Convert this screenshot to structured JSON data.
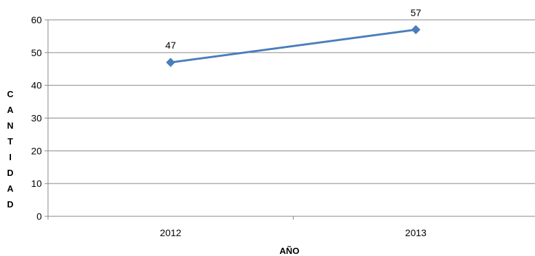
{
  "chart_data": {
    "type": "line",
    "categories": [
      "2012",
      "2013"
    ],
    "series": [
      {
        "values": [
          47,
          57
        ]
      }
    ],
    "data_labels": [
      "47",
      "57"
    ],
    "title": "",
    "xlabel": "AÑO",
    "ylabel": "CANTIDAD",
    "ylim": [
      0,
      60
    ],
    "yticks": [
      0,
      10,
      20,
      30,
      40,
      50,
      60
    ],
    "grid": true,
    "legend": "none",
    "colors": {
      "line": "#4a7ebb",
      "marker": "#4a7ebb",
      "grid": "#868686",
      "axis": "#868686"
    }
  }
}
